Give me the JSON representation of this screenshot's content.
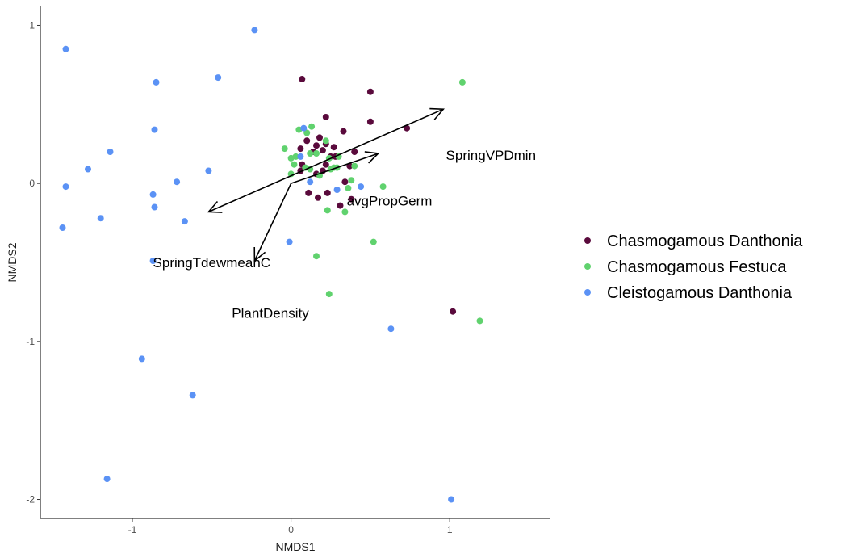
{
  "chart_data": {
    "type": "scatter",
    "xlabel": "NMDS1",
    "ylabel": "NMDS2",
    "xlim": [
      -1.58,
      1.63
    ],
    "ylim": [
      -2.12,
      1.12
    ],
    "x_ticks": [
      -1,
      0,
      1
    ],
    "x_tick_labels": [
      "-1",
      "0",
      "1"
    ],
    "y_ticks": [
      1,
      0,
      -1,
      -2
    ],
    "y_tick_labels": [
      "1",
      "0",
      "-1",
      "-2"
    ],
    "grid": false,
    "legend_position": "right",
    "series": [
      {
        "name": "Chasmogamous Danthonia",
        "color": "#5a0a3c",
        "points": [
          [
            0.07,
            0.66
          ],
          [
            0.5,
            0.58
          ],
          [
            0.5,
            0.39
          ],
          [
            0.73,
            0.35
          ],
          [
            0.22,
            0.42
          ],
          [
            0.33,
            0.33
          ],
          [
            0.18,
            0.29
          ],
          [
            0.1,
            0.27
          ],
          [
            0.16,
            0.24
          ],
          [
            0.22,
            0.25
          ],
          [
            0.06,
            0.22
          ],
          [
            0.27,
            0.23
          ],
          [
            0.4,
            0.2
          ],
          [
            0.14,
            0.2
          ],
          [
            0.2,
            0.21
          ],
          [
            0.25,
            0.17
          ],
          [
            0.28,
            0.17
          ],
          [
            0.07,
            0.12
          ],
          [
            0.22,
            0.12
          ],
          [
            0.37,
            0.11
          ],
          [
            0.06,
            0.08
          ],
          [
            0.2,
            0.08
          ],
          [
            0.16,
            0.06
          ],
          [
            0.34,
            0.01
          ],
          [
            0.23,
            -0.06
          ],
          [
            0.11,
            -0.06
          ],
          [
            0.17,
            -0.09
          ],
          [
            0.31,
            -0.14
          ],
          [
            0.38,
            -0.1
          ],
          [
            1.02,
            -0.81
          ]
        ]
      },
      {
        "name": "Chasmogamous Festuca",
        "color": "#60d26e",
        "points": [
          [
            1.08,
            0.64
          ],
          [
            0.13,
            0.36
          ],
          [
            0.05,
            0.34
          ],
          [
            0.1,
            0.32
          ],
          [
            0.22,
            0.27
          ],
          [
            0.12,
            0.19
          ],
          [
            0.16,
            0.19
          ],
          [
            -0.04,
            0.22
          ],
          [
            0.24,
            0.16
          ],
          [
            0.3,
            0.17
          ],
          [
            0.0,
            0.16
          ],
          [
            0.02,
            0.12
          ],
          [
            0.25,
            0.09
          ],
          [
            0.29,
            0.1
          ],
          [
            0.4,
            0.11
          ],
          [
            0.18,
            0.05
          ],
          [
            0.0,
            0.06
          ],
          [
            0.38,
            0.02
          ],
          [
            0.58,
            -0.02
          ],
          [
            0.36,
            -0.03
          ],
          [
            0.23,
            -0.17
          ],
          [
            0.34,
            -0.18
          ],
          [
            0.52,
            -0.37
          ],
          [
            0.16,
            -0.46
          ],
          [
            0.24,
            -0.7
          ],
          [
            1.19,
            -0.87
          ],
          [
            0.27,
            0.1
          ],
          [
            0.12,
            0.09
          ],
          [
            0.03,
            0.17
          ],
          [
            0.09,
            0.1
          ]
        ]
      },
      {
        "name": "Cleistogamous Danthonia",
        "color": "#5b92f5",
        "points": [
          [
            -0.23,
            0.97
          ],
          [
            -1.42,
            0.85
          ],
          [
            -0.46,
            0.67
          ],
          [
            -0.85,
            0.64
          ],
          [
            -0.86,
            0.34
          ],
          [
            0.08,
            0.35
          ],
          [
            -1.14,
            0.2
          ],
          [
            0.06,
            0.17
          ],
          [
            -1.28,
            0.09
          ],
          [
            -0.52,
            0.08
          ],
          [
            -0.72,
            0.01
          ],
          [
            0.12,
            0.01
          ],
          [
            -1.42,
            -0.02
          ],
          [
            0.44,
            -0.02
          ],
          [
            0.29,
            -0.04
          ],
          [
            -0.87,
            -0.07
          ],
          [
            -0.86,
            -0.15
          ],
          [
            -1.2,
            -0.22
          ],
          [
            -0.67,
            -0.24
          ],
          [
            -1.44,
            -0.28
          ],
          [
            -0.01,
            -0.37
          ],
          [
            -0.87,
            -0.49
          ],
          [
            0.63,
            -0.92
          ],
          [
            -0.94,
            -1.11
          ],
          [
            -0.62,
            -1.34
          ],
          [
            -1.16,
            -1.87
          ],
          [
            1.01,
            -2.0
          ]
        ]
      }
    ],
    "vectors": [
      {
        "label": "SpringVPDmin",
        "tip": [
          0.96,
          0.47
        ],
        "tail": [
          -0.52,
          -0.18
        ],
        "label_pos": [
          1.26,
          0.18
        ]
      },
      {
        "label": "avgPropGerm",
        "tip": [
          0.55,
          0.19
        ],
        "tail": [
          0.0,
          0.0
        ],
        "label_pos": [
          0.62,
          -0.11
        ]
      },
      {
        "label": "SpringTdewmeanC",
        "tip": [
          -0.23,
          -0.49
        ],
        "tail": [
          0.0,
          0.0
        ],
        "label_pos": [
          -0.5,
          -0.5
        ]
      },
      {
        "label": "PlantDensity",
        "tip": [
          -0.23,
          -0.49
        ],
        "tail": [
          -0.23,
          -0.49
        ],
        "label_pos": [
          -0.13,
          -0.82
        ]
      }
    ]
  }
}
